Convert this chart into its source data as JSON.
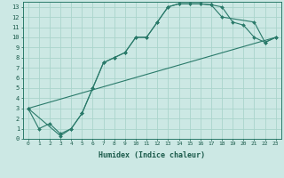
{
  "xlabel": "Humidex (Indice chaleur)",
  "bg_color": "#cce8e4",
  "grid_color": "#aad4cc",
  "line_color": "#2a7a6a",
  "xlim": [
    -0.5,
    23.5
  ],
  "ylim": [
    0,
    13.5
  ],
  "xticks": [
    0,
    1,
    2,
    3,
    4,
    5,
    6,
    7,
    8,
    9,
    10,
    11,
    12,
    13,
    14,
    15,
    16,
    17,
    18,
    19,
    20,
    21,
    22,
    23
  ],
  "yticks": [
    0,
    1,
    2,
    3,
    4,
    5,
    6,
    7,
    8,
    9,
    10,
    11,
    12,
    13
  ],
  "line1_x": [
    0,
    1,
    2,
    3,
    4,
    5,
    6,
    7,
    8,
    9,
    10,
    11,
    12,
    13,
    14,
    15,
    16,
    17,
    18,
    19,
    20,
    21,
    22,
    23
  ],
  "line1_y": [
    3,
    1,
    1.5,
    0.5,
    1.0,
    2.5,
    5.0,
    7.5,
    8.0,
    8.5,
    10.0,
    10.0,
    11.5,
    13.0,
    13.3,
    13.3,
    13.3,
    13.2,
    13.0,
    11.5,
    11.2,
    10.0,
    9.5,
    10.0
  ],
  "line2_x": [
    0,
    3,
    4,
    5,
    6,
    7,
    8,
    9,
    10,
    11,
    12,
    13,
    14,
    15,
    16,
    17,
    18,
    21,
    22,
    23
  ],
  "line2_y": [
    3,
    0.3,
    1.0,
    2.5,
    5.0,
    7.5,
    8.0,
    8.5,
    10.0,
    10.0,
    11.5,
    13.0,
    13.3,
    13.3,
    13.3,
    13.2,
    12.0,
    11.5,
    9.5,
    10.0
  ],
  "line3_x": [
    0,
    23
  ],
  "line3_y": [
    3,
    10
  ],
  "xlabel_fontsize": 6,
  "tick_fontsize": 5
}
